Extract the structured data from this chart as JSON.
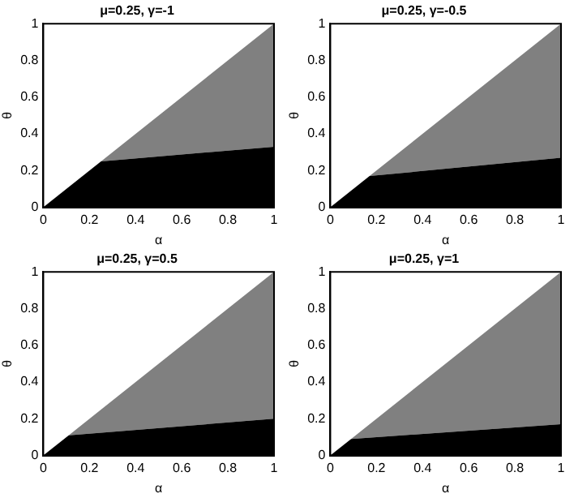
{
  "chart_data": [
    {
      "type": "area",
      "title": "μ=0.25, γ=-1",
      "xlabel": "α",
      "ylabel": "θ",
      "stacked": true,
      "x": [
        0,
        0.25,
        1
      ],
      "series": [
        {
          "color": "#000000",
          "values": [
            0,
            0.25,
            0.33
          ]
        },
        {
          "color": "#808080",
          "values": [
            0,
            0,
            0.67
          ]
        }
      ],
      "xlim": [
        0,
        1
      ],
      "ylim": [
        0,
        1
      ],
      "xticks": [
        0,
        0.2,
        0.4,
        0.6,
        0.8,
        1
      ],
      "yticks": [
        0,
        0.2,
        0.4,
        0.6,
        0.8,
        1
      ],
      "grid": false,
      "legend": false
    },
    {
      "type": "area",
      "title": "μ=0.25, γ=-0.5",
      "xlabel": "α",
      "ylabel": "θ",
      "stacked": true,
      "x": [
        0,
        0.17,
        1
      ],
      "series": [
        {
          "color": "#000000",
          "values": [
            0,
            0.17,
            0.27
          ]
        },
        {
          "color": "#808080",
          "values": [
            0,
            0,
            0.73
          ]
        }
      ],
      "xlim": [
        0,
        1
      ],
      "ylim": [
        0,
        1
      ],
      "xticks": [
        0,
        0.2,
        0.4,
        0.6,
        0.8,
        1
      ],
      "yticks": [
        0,
        0.2,
        0.4,
        0.6,
        0.8,
        1
      ],
      "grid": false,
      "legend": false
    },
    {
      "type": "area",
      "title": "μ=0.25, γ=0.5",
      "xlabel": "α",
      "ylabel": "θ",
      "stacked": true,
      "x": [
        0,
        0.11,
        1
      ],
      "series": [
        {
          "color": "#000000",
          "values": [
            0,
            0.11,
            0.2
          ]
        },
        {
          "color": "#808080",
          "values": [
            0,
            0,
            0.8
          ]
        }
      ],
      "xlim": [
        0,
        1
      ],
      "ylim": [
        0,
        1
      ],
      "xticks": [
        0,
        0.2,
        0.4,
        0.6,
        0.8,
        1
      ],
      "yticks": [
        0,
        0.2,
        0.4,
        0.6,
        0.8,
        1
      ],
      "grid": false,
      "legend": false
    },
    {
      "type": "area",
      "title": "μ=0.25, γ=1",
      "xlabel": "α",
      "ylabel": "θ",
      "stacked": true,
      "x": [
        0,
        0.09,
        1
      ],
      "series": [
        {
          "color": "#000000",
          "values": [
            0,
            0.09,
            0.17
          ]
        },
        {
          "color": "#808080",
          "values": [
            0,
            0,
            0.83
          ]
        }
      ],
      "xlim": [
        0,
        1
      ],
      "ylim": [
        0,
        1
      ],
      "xticks": [
        0,
        0.2,
        0.4,
        0.6,
        0.8,
        1
      ],
      "yticks": [
        0,
        0.2,
        0.4,
        0.6,
        0.8,
        1
      ],
      "grid": false,
      "legend": false
    }
  ]
}
